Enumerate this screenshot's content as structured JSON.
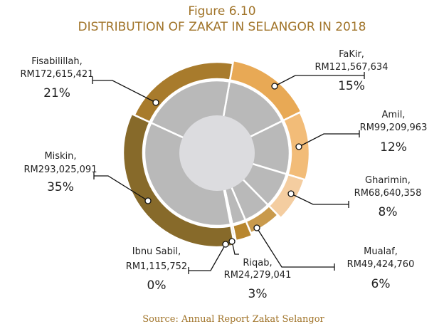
{
  "chart_data": {
    "type": "pie",
    "title_line1": "Figure 6.10",
    "title_line2": "DISTRIBUTION OF ZAKAT IN SELANGOR IN 2018",
    "source": "Source: Annual Report Zakat Selangor",
    "slices": [
      {
        "name": "FaKir,",
        "amount": "RM121,567,634",
        "percent_label": "15%",
        "value": 15,
        "color": "#e8a955"
      },
      {
        "name": "Amil,",
        "amount": "RM99,209,963",
        "percent_label": "12%",
        "value": 12,
        "color": "#f2bc78"
      },
      {
        "name": "Gharimin,",
        "amount": "RM68,640,358",
        "percent_label": "8%",
        "value": 8,
        "color": "#f4cda0"
      },
      {
        "name": "Mualaf,",
        "amount": "RM49,424,760",
        "percent_label": "6%",
        "value": 6,
        "color": "#c99a4c"
      },
      {
        "name": "Riqab,",
        "amount": "RM24,279,041",
        "percent_label": "3%",
        "value": 3,
        "color": "#b8862e"
      },
      {
        "name": "Ibnu Sabil,",
        "amount": "RM1,115,752",
        "percent_label": "0%",
        "value": 0.4,
        "color": "#a07a30"
      },
      {
        "name": "Miskin,",
        "amount": "RM293,025,091",
        "percent_label": "35%",
        "value": 35,
        "color": "#876a2a"
      },
      {
        "name": "Fisabilillah,",
        "amount": "RM172,615,421",
        "percent_label": "21%",
        "value": 21,
        "color": "#a87b2c"
      }
    ]
  }
}
